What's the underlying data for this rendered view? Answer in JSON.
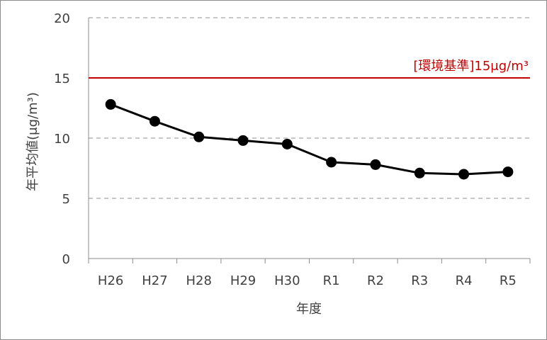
{
  "colors": {
    "line": "#000000",
    "marker": "#000000",
    "grid": "#a6a6a6",
    "axis": "#8c8c8c",
    "reference": "#c00000",
    "text": "#404040"
  },
  "chart_data": {
    "type": "line",
    "title": "",
    "xlabel": "年度",
    "ylabel": "年平均値(μg/m³)",
    "categories": [
      "H26",
      "H27",
      "H28",
      "H29",
      "H30",
      "R1",
      "R2",
      "R3",
      "R4",
      "R5"
    ],
    "series": [
      {
        "values": [
          12.8,
          11.4,
          10.1,
          9.8,
          9.5,
          8.0,
          7.8,
          7.1,
          7.0,
          7.2
        ]
      }
    ],
    "ylim": [
      0,
      20
    ],
    "yticks": [
      0,
      5,
      10,
      15,
      20
    ],
    "grid": "horizontal dashed",
    "reference_line": {
      "value": 15,
      "label": "[環境基準]15μg/m³"
    }
  }
}
